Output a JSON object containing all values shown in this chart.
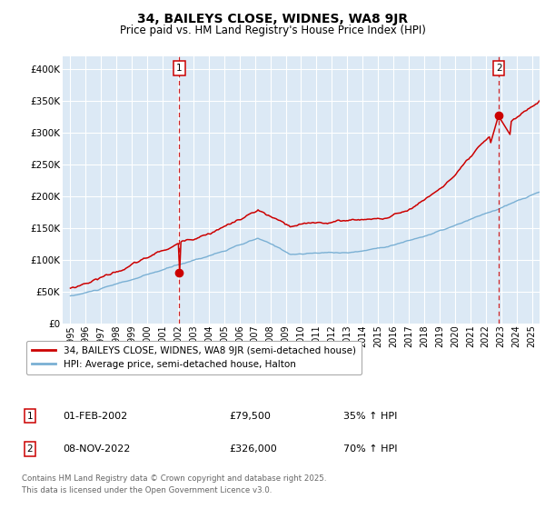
{
  "title": "34, BAILEYS CLOSE, WIDNES, WA8 9JR",
  "subtitle": "Price paid vs. HM Land Registry's House Price Index (HPI)",
  "bg_color": "#dce9f5",
  "red_color": "#cc0000",
  "blue_color": "#7ab0d4",
  "grid_color": "#ffffff",
  "sale1_date": 2002.08,
  "sale1_price": 79500,
  "sale2_date": 2022.85,
  "sale2_price": 326000,
  "ylim": [
    0,
    420000
  ],
  "xlim_start": 1994.5,
  "xlim_end": 2025.5,
  "legend_line1": "34, BAILEYS CLOSE, WIDNES, WA8 9JR (semi-detached house)",
  "legend_line2": "HPI: Average price, semi-detached house, Halton",
  "sale1_annotation": "01-FEB-2002",
  "sale1_price_str": "£79,500",
  "sale1_pct": "35% ↑ HPI",
  "sale2_annotation": "08-NOV-2022",
  "sale2_price_str": "£326,000",
  "sale2_pct": "70% ↑ HPI",
  "footer": "Contains HM Land Registry data © Crown copyright and database right 2025.\nThis data is licensed under the Open Government Licence v3.0.",
  "yticks": [
    0,
    50000,
    100000,
    150000,
    200000,
    250000,
    300000,
    350000,
    400000
  ],
  "ytick_labels": [
    "£0",
    "£50K",
    "£100K",
    "£150K",
    "£200K",
    "£250K",
    "£300K",
    "£350K",
    "£400K"
  ],
  "xtick_years": [
    1995,
    1996,
    1997,
    1998,
    1999,
    2000,
    2001,
    2002,
    2003,
    2004,
    2005,
    2006,
    2007,
    2008,
    2009,
    2010,
    2011,
    2012,
    2013,
    2014,
    2015,
    2016,
    2017,
    2018,
    2019,
    2020,
    2021,
    2022,
    2023,
    2024,
    2025
  ]
}
